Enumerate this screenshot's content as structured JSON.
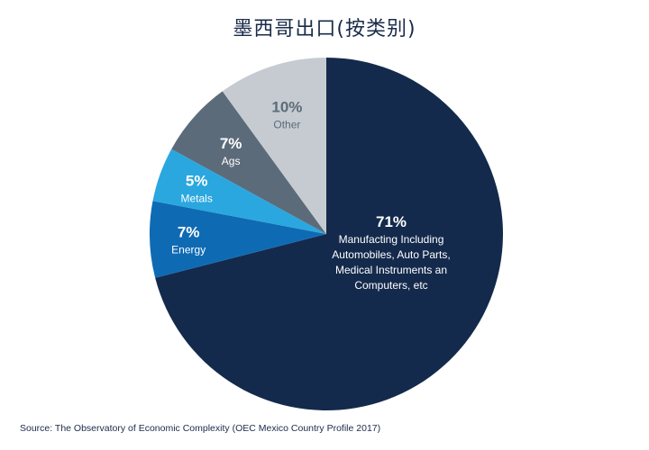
{
  "chart_data": {
    "type": "pie",
    "title": "墨西哥出口(按类别)",
    "start_angle_deg": 0,
    "direction": "clockwise",
    "slices": [
      {
        "label": "Manufacting Including Automobiles, Auto Parts, Medical Instruments an Computers, etc",
        "label_lines": [
          "Manufacting Including",
          "Automobiles, Auto Parts,",
          "Medical Instruments an",
          "Computers, etc"
        ],
        "value": 71,
        "pct_text": "71%",
        "color": "#142a4c",
        "text_color": "#ffffff",
        "pct_color": "#ffffff"
      },
      {
        "label": "Energy",
        "label_lines": [
          "Energy"
        ],
        "value": 7,
        "pct_text": "7%",
        "color": "#0f6ab4",
        "text_color": "#ffffff",
        "pct_color": "#ffffff"
      },
      {
        "label": "Metals",
        "label_lines": [
          "Metals"
        ],
        "value": 5,
        "pct_text": "5%",
        "color": "#2aa7df",
        "text_color": "#ffffff",
        "pct_color": "#ffffff"
      },
      {
        "label": "Ags",
        "label_lines": [
          "Ags"
        ],
        "value": 7,
        "pct_text": "7%",
        "color": "#5c6b7a",
        "text_color": "#ffffff",
        "pct_color": "#ffffff"
      },
      {
        "label": "Other",
        "label_lines": [
          "Other"
        ],
        "value": 10,
        "pct_text": "10%",
        "color": "#c5cbd0",
        "text_color": "#5c6b7a",
        "pct_color": "#5c6b7a"
      }
    ]
  },
  "source": "Source: The Observatory of Economic Complexity (OEC Mexico Country Profile 2017)"
}
